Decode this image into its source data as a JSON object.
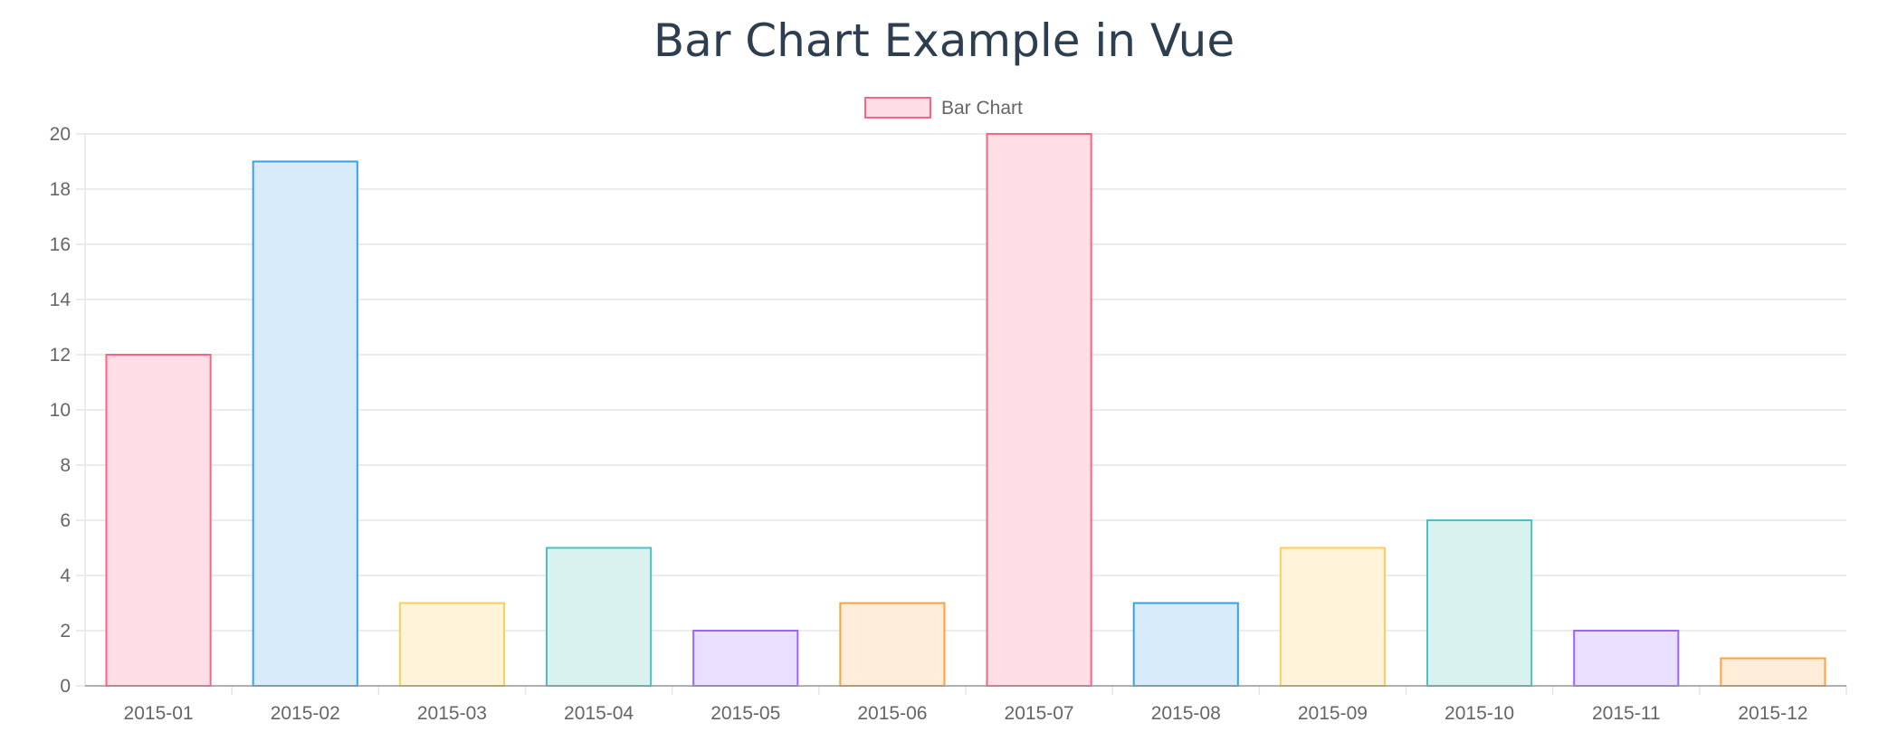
{
  "page": {
    "title": "Bar Chart Example in Vue"
  },
  "chart_data": {
    "type": "bar",
    "title": "",
    "xlabel": "",
    "ylabel": "",
    "categories": [
      "2015-01",
      "2015-02",
      "2015-03",
      "2015-04",
      "2015-05",
      "2015-06",
      "2015-07",
      "2015-08",
      "2015-09",
      "2015-10",
      "2015-11",
      "2015-12"
    ],
    "series": [
      {
        "name": "Bar Chart",
        "values": [
          12,
          19,
          3,
          5,
          2,
          3,
          20,
          3,
          5,
          6,
          2,
          1
        ]
      }
    ],
    "ylim": [
      0,
      20
    ],
    "yticks": [
      "0",
      "2",
      "4",
      "6",
      "8",
      "10",
      "12",
      "14",
      "16",
      "18",
      "20"
    ],
    "grid": true,
    "legend_position": "top",
    "colors": {
      "fill": [
        "#ffdfe5",
        "#d8ebfa",
        "#fff4da",
        "#daf2ef",
        "#ebdfff",
        "#ffecd9",
        "#ffdfe5",
        "#d8ebfa",
        "#fff4da",
        "#daf2ef",
        "#ebdfff",
        "#ffecd9"
      ],
      "border": [
        "#ff6384",
        "#36a2eb",
        "#ffce56",
        "#4bc0c0",
        "#9966ff",
        "#ff9f40",
        "#ff6384",
        "#36a2eb",
        "#ffce56",
        "#4bc0c0",
        "#9966ff",
        "#ff9f40"
      ],
      "legend_fill": "#ffdfe5",
      "legend_border": "#ff6384",
      "grid": "#e6e6e6",
      "axis": "#999999",
      "text": "#666666"
    }
  }
}
